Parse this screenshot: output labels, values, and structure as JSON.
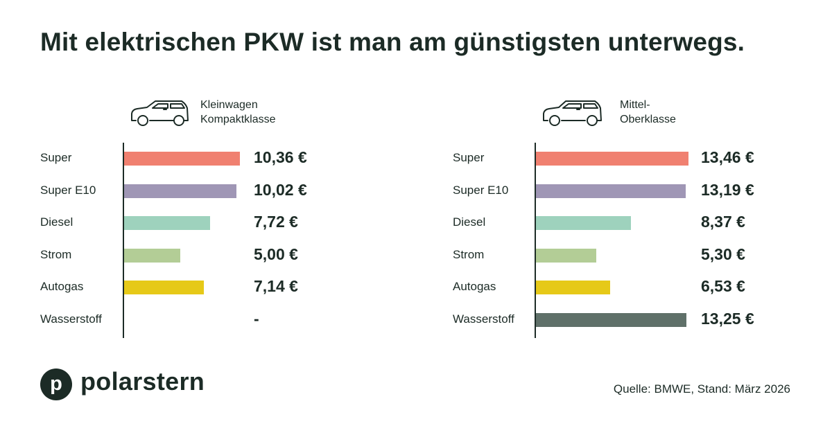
{
  "title": "Mit elektrischen PKW ist man am günstigsten unterwegs.",
  "brand": {
    "logo_letter": "p",
    "name": "polarstern"
  },
  "source": "Quelle: BMWE, Stand: März 2026",
  "colors": {
    "Super": "#f08070",
    "Super E10": "#9f96b5",
    "Diesel": "#9ed2bd",
    "Strom": "#b3cd96",
    "Autogas": "#e6c918",
    "Wasserstoff": "#5f7069",
    "text": "#1c2b26"
  },
  "panels": [
    {
      "class_label_line1": "Kleinwagen",
      "class_label_line2": "Kompaktklasse",
      "icon": "car-icon"
    },
    {
      "class_label_line1": "Mittel-",
      "class_label_line2": "Oberklasse",
      "icon": "car-icon"
    }
  ],
  "chart_data": [
    {
      "type": "bar",
      "orientation": "horizontal",
      "categories": [
        "Super",
        "Super E10",
        "Diesel",
        "Strom",
        "Autogas",
        "Wasserstoff"
      ],
      "values": [
        10.36,
        10.02,
        7.72,
        5.0,
        7.14,
        null
      ],
      "value_labels": [
        "10,36 €",
        "10,02 €",
        "7,72 €",
        "5,00 €",
        "7,14 €",
        "-"
      ],
      "title": "Kleinwagen Kompaktklasse",
      "xlim": [
        0,
        10.36
      ]
    },
    {
      "type": "bar",
      "orientation": "horizontal",
      "categories": [
        "Super",
        "Super E10",
        "Diesel",
        "Strom",
        "Autogas",
        "Wasserstoff"
      ],
      "values": [
        13.46,
        13.19,
        8.37,
        5.3,
        6.53,
        13.25
      ],
      "value_labels": [
        "13,46 €",
        "13,19 €",
        "8,37 €",
        "5,30 €",
        "6,53 €",
        "13,25 €"
      ],
      "title": "Mittel- Oberklasse",
      "xlim": [
        0,
        13.46
      ]
    }
  ]
}
